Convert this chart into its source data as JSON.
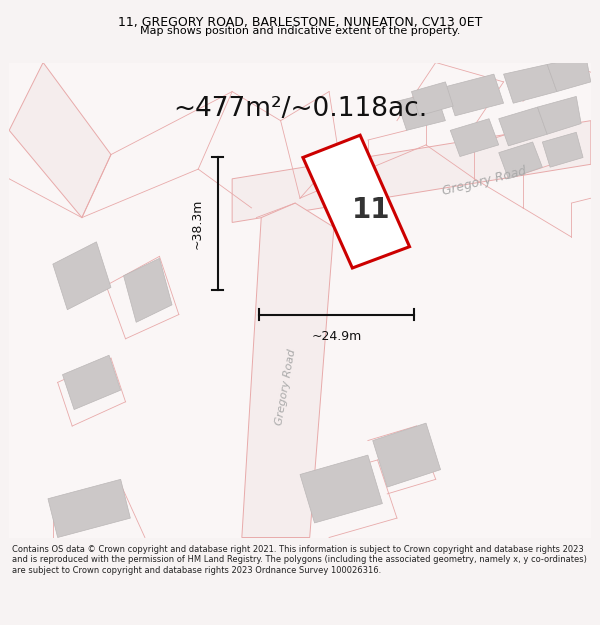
{
  "title_line1": "11, GREGORY ROAD, BARLESTONE, NUNEATON, CV13 0ET",
  "title_line2": "Map shows position and indicative extent of the property.",
  "area_text": "~477m²/~0.118ac.",
  "dim_height": "~38.3m",
  "dim_width": "~24.9m",
  "property_number": "11",
  "footer_text": "Contains OS data © Crown copyright and database right 2021. This information is subject to Crown copyright and database rights 2023 and is reproduced with the permission of HM Land Registry. The polygons (including the associated geometry, namely x, y co-ordinates) are subject to Crown copyright and database rights 2023 Ordnance Survey 100026316.",
  "bg_color": "#f7f3f3",
  "map_bg_color": "#faf6f6",
  "road_fill_color": "#f5eded",
  "road_line_color": "#e8aaaa",
  "building_color": "#ccc8c8",
  "building_edge_color": "#bbb7b7",
  "property_fill": "#ffffff",
  "property_edge": "#cc0000",
  "road_label_color": "#aaaaaa",
  "dim_color": "#111111",
  "title_color": "#000000",
  "area_color": "#111111"
}
